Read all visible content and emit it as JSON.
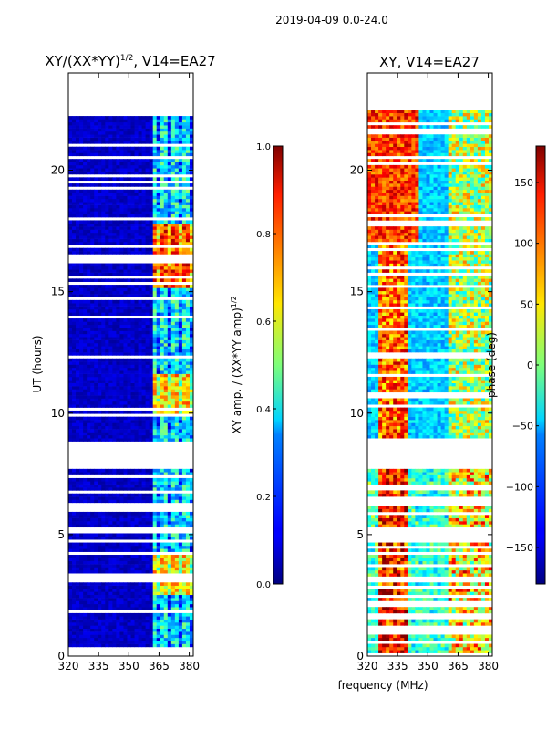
{
  "figure_title": "2019-04-09 0.0-24.0",
  "chart_data": [
    {
      "type": "heatmap",
      "title": "XY/(XX*YY)",
      "title_sup": "1/2",
      "title_suffix": ", V14=EA27",
      "xlabel": "",
      "ylabel": "UT (hours)",
      "xlim": [
        320,
        382
      ],
      "ylim": [
        0,
        24
      ],
      "x_ticks": [
        320,
        335,
        350,
        365,
        380
      ],
      "y_ticks": [
        0,
        5,
        10,
        15,
        20
      ],
      "data_gaps_hours": [
        [
          7.7,
          8.9
        ],
        [
          22.5,
          24.0
        ]
      ],
      "colorbar": {
        "label": "XY amp. / (XX*YY amp)",
        "label_sup": "1/2",
        "range": [
          0.0,
          1.0
        ],
        "ticks": [
          "0.0",
          "0.2",
          "0.4",
          "0.6",
          "0.8",
          "1.0"
        ],
        "tick_values": [
          0.0,
          0.2,
          0.4,
          0.6,
          0.8,
          1.0
        ]
      }
    },
    {
      "type": "heatmap",
      "title": "XY, V14=EA27",
      "xlabel": "frequency (MHz)",
      "ylabel": "",
      "xlim": [
        320,
        382
      ],
      "ylim": [
        0,
        24
      ],
      "x_ticks": [
        320,
        335,
        350,
        365,
        380
      ],
      "y_ticks": [
        0,
        5,
        10,
        15,
        20
      ],
      "data_gaps_hours": [
        [
          7.7,
          8.9
        ],
        [
          22.5,
          24.0
        ]
      ],
      "colorbar": {
        "label": "phase (deg)",
        "range": [
          -180,
          180
        ],
        "ticks": [
          "−150",
          "−100",
          "−50",
          "0",
          "50",
          "100",
          "150"
        ],
        "tick_values": [
          -150,
          -100,
          -50,
          0,
          50,
          100,
          150
        ]
      }
    }
  ]
}
